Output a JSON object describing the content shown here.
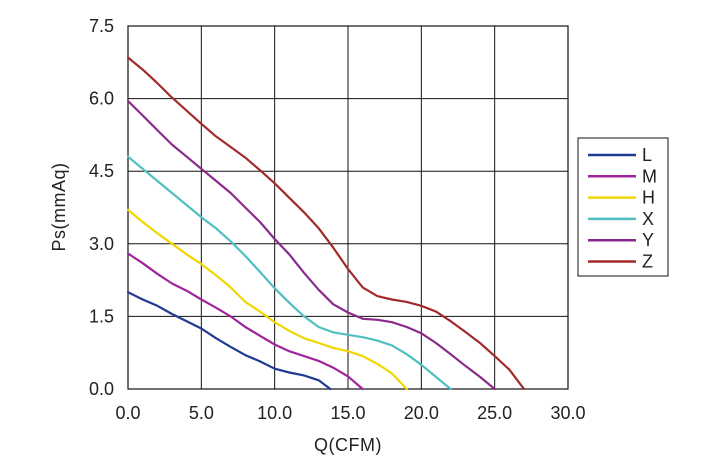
{
  "chart_data": {
    "type": "line",
    "xlabel": "Q(CFM)",
    "ylabel": "Ps(mmAq)",
    "xlim": [
      0,
      30
    ],
    "ylim": [
      0,
      7.5
    ],
    "x_ticks": [
      "0.0",
      "5.0",
      "10.0",
      "15.0",
      "20.0",
      "25.0",
      "30.0"
    ],
    "y_ticks": [
      "0.0",
      "1.5",
      "3.0",
      "4.5",
      "6.0",
      "7.5"
    ],
    "grid": true,
    "legend_position": "right",
    "series": [
      {
        "name": "L",
        "color": "#1f3a93",
        "points": [
          [
            0,
            2.0
          ],
          [
            1,
            1.85
          ],
          [
            2,
            1.72
          ],
          [
            3,
            1.55
          ],
          [
            4,
            1.4
          ],
          [
            5,
            1.25
          ],
          [
            6,
            1.05
          ],
          [
            7,
            0.87
          ],
          [
            8,
            0.7
          ],
          [
            9,
            0.57
          ],
          [
            10,
            0.42
          ],
          [
            11,
            0.34
          ],
          [
            12,
            0.28
          ],
          [
            13,
            0.18
          ],
          [
            13.8,
            0.0
          ]
        ]
      },
      {
        "name": "M",
        "color": "#a0249c",
        "points": [
          [
            0,
            2.8
          ],
          [
            1,
            2.6
          ],
          [
            2,
            2.38
          ],
          [
            3,
            2.18
          ],
          [
            4,
            2.03
          ],
          [
            5,
            1.85
          ],
          [
            6,
            1.68
          ],
          [
            7,
            1.5
          ],
          [
            8,
            1.28
          ],
          [
            9,
            1.1
          ],
          [
            10,
            0.92
          ],
          [
            11,
            0.78
          ],
          [
            12,
            0.68
          ],
          [
            13,
            0.58
          ],
          [
            14,
            0.44
          ],
          [
            15,
            0.26
          ],
          [
            16,
            0.0
          ]
        ]
      },
      {
        "name": "H",
        "color": "#f2d600",
        "points": [
          [
            0,
            3.7
          ],
          [
            1,
            3.45
          ],
          [
            2,
            3.22
          ],
          [
            3,
            3.0
          ],
          [
            4,
            2.78
          ],
          [
            5,
            2.58
          ],
          [
            6,
            2.35
          ],
          [
            7,
            2.1
          ],
          [
            8,
            1.8
          ],
          [
            9,
            1.6
          ],
          [
            10,
            1.38
          ],
          [
            11,
            1.2
          ],
          [
            12,
            1.05
          ],
          [
            13,
            0.95
          ],
          [
            14,
            0.85
          ],
          [
            15,
            0.78
          ],
          [
            16,
            0.68
          ],
          [
            17,
            0.52
          ],
          [
            18,
            0.32
          ],
          [
            19,
            0.0
          ]
        ]
      },
      {
        "name": "X",
        "color": "#4fbfc2",
        "points": [
          [
            0,
            4.8
          ],
          [
            1,
            4.55
          ],
          [
            2,
            4.3
          ],
          [
            3,
            4.05
          ],
          [
            4,
            3.8
          ],
          [
            5,
            3.55
          ],
          [
            6,
            3.32
          ],
          [
            7,
            3.05
          ],
          [
            8,
            2.75
          ],
          [
            9,
            2.42
          ],
          [
            10,
            2.08
          ],
          [
            11,
            1.78
          ],
          [
            12,
            1.5
          ],
          [
            13,
            1.28
          ],
          [
            14,
            1.17
          ],
          [
            15,
            1.12
          ],
          [
            16,
            1.07
          ],
          [
            17,
            1.0
          ],
          [
            18,
            0.9
          ],
          [
            19,
            0.72
          ],
          [
            20,
            0.5
          ],
          [
            21,
            0.25
          ],
          [
            22,
            0.0
          ]
        ]
      },
      {
        "name": "Y",
        "color": "#8a2a8c",
        "points": [
          [
            0,
            5.95
          ],
          [
            1,
            5.65
          ],
          [
            2,
            5.35
          ],
          [
            3,
            5.05
          ],
          [
            4,
            4.8
          ],
          [
            5,
            4.55
          ],
          [
            6,
            4.3
          ],
          [
            7,
            4.05
          ],
          [
            8,
            3.75
          ],
          [
            9,
            3.45
          ],
          [
            10,
            3.1
          ],
          [
            11,
            2.78
          ],
          [
            12,
            2.4
          ],
          [
            13,
            2.05
          ],
          [
            14,
            1.75
          ],
          [
            15,
            1.58
          ],
          [
            16,
            1.45
          ],
          [
            17,
            1.43
          ],
          [
            18,
            1.38
          ],
          [
            19,
            1.28
          ],
          [
            20,
            1.15
          ],
          [
            21,
            0.95
          ],
          [
            22,
            0.72
          ],
          [
            23,
            0.48
          ],
          [
            24,
            0.25
          ],
          [
            25,
            0.0
          ]
        ]
      },
      {
        "name": "Z",
        "color": "#a32a2a",
        "points": [
          [
            0,
            6.85
          ],
          [
            1,
            6.6
          ],
          [
            2,
            6.32
          ],
          [
            3,
            6.02
          ],
          [
            4,
            5.75
          ],
          [
            5,
            5.48
          ],
          [
            6,
            5.22
          ],
          [
            7,
            5.0
          ],
          [
            8,
            4.78
          ],
          [
            9,
            4.52
          ],
          [
            10,
            4.25
          ],
          [
            11,
            3.95
          ],
          [
            12,
            3.65
          ],
          [
            13,
            3.32
          ],
          [
            14,
            2.92
          ],
          [
            15,
            2.48
          ],
          [
            16,
            2.1
          ],
          [
            17,
            1.92
          ],
          [
            18,
            1.85
          ],
          [
            19,
            1.8
          ],
          [
            20,
            1.72
          ],
          [
            21,
            1.6
          ],
          [
            22,
            1.4
          ],
          [
            23,
            1.18
          ],
          [
            24,
            0.95
          ],
          [
            25,
            0.68
          ],
          [
            26,
            0.4
          ],
          [
            27,
            0.0
          ]
        ]
      }
    ]
  }
}
